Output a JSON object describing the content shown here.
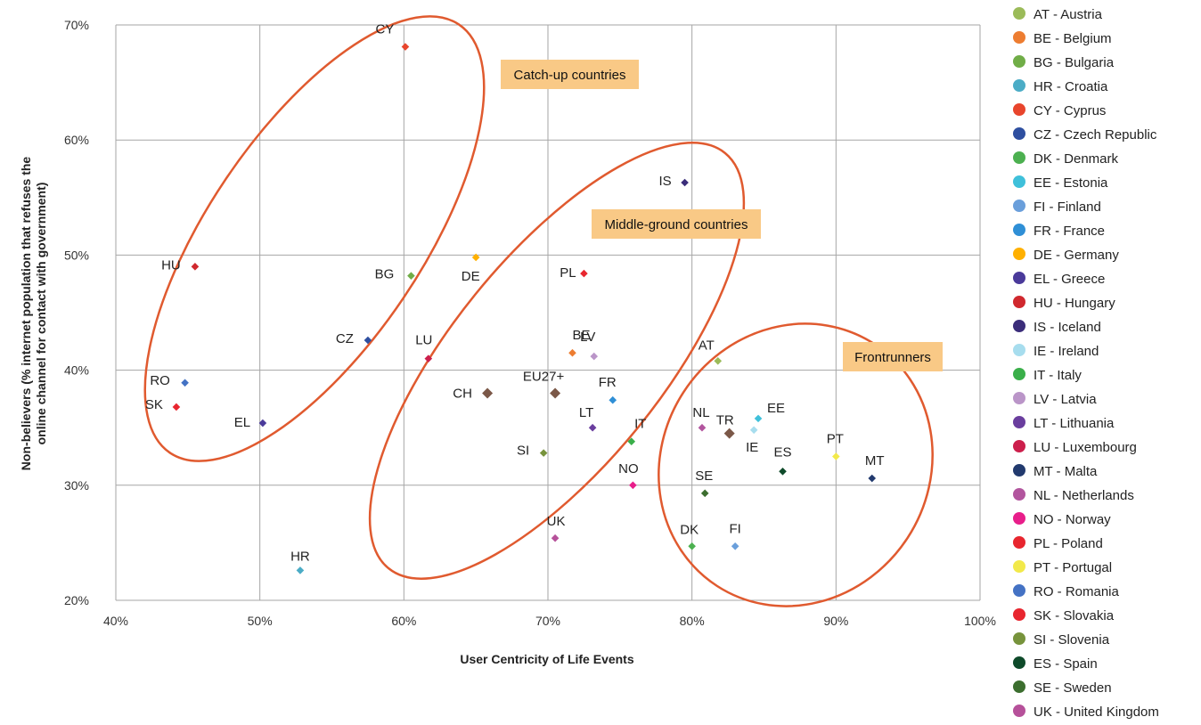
{
  "chart_data": {
    "type": "scatter",
    "title": "",
    "xlabel": "User Centricity of Life Events",
    "ylabel": [
      "Non-believers (% internet population that refuses the",
      "online channel for contact with government)"
    ],
    "xlim": [
      0.4,
      1.0
    ],
    "ylim": [
      0.2,
      0.7
    ],
    "xticks": [
      0.4,
      0.5,
      0.6,
      0.7,
      0.8,
      0.9,
      1.0
    ],
    "xtick_labels": [
      "40%",
      "50%",
      "60%",
      "70%",
      "80%",
      "90%",
      "100%"
    ],
    "yticks": [
      0.2,
      0.3,
      0.4,
      0.5,
      0.6,
      0.7
    ],
    "ytick_labels": [
      "20%",
      "30%",
      "40%",
      "50%",
      "60%",
      "70%"
    ],
    "grid": true,
    "legend_position": "right",
    "points": [
      {
        "code": "AT",
        "name": "AT - Austria",
        "color": "#9BBB59",
        "x": 0.818,
        "y": 0.408
      },
      {
        "code": "BE",
        "name": "BE - Belgium",
        "color": "#ED7D31",
        "x": 0.717,
        "y": 0.415
      },
      {
        "code": "BG",
        "name": "BG - Bulgaria",
        "color": "#70AD47",
        "x": 0.605,
        "y": 0.482
      },
      {
        "code": "HR",
        "name": "HR - Croatia",
        "color": "#4BACC6",
        "x": 0.528,
        "y": 0.226
      },
      {
        "code": "CY",
        "name": "CY - Cyprus",
        "color": "#E8452C",
        "x": 0.601,
        "y": 0.681
      },
      {
        "code": "CZ",
        "name": "CZ - Czech Republic",
        "color": "#2E4FA0",
        "x": 0.575,
        "y": 0.426
      },
      {
        "code": "DK",
        "name": "DK - Denmark",
        "color": "#4CB050",
        "x": 0.8,
        "y": 0.247
      },
      {
        "code": "EE",
        "name": "EE - Estonia",
        "color": "#3FC0DA",
        "x": 0.846,
        "y": 0.358
      },
      {
        "code": "FI",
        "name": "FI - Finland",
        "color": "#6A9FDB",
        "x": 0.83,
        "y": 0.247
      },
      {
        "code": "FR",
        "name": "FR - France",
        "color": "#2F8FD6",
        "x": 0.745,
        "y": 0.374
      },
      {
        "code": "DE",
        "name": "DE - Germany",
        "color": "#FFB000",
        "x": 0.65,
        "y": 0.498
      },
      {
        "code": "EL",
        "name": "EL - Greece",
        "color": "#4A3A9A",
        "x": 0.502,
        "y": 0.354
      },
      {
        "code": "HU",
        "name": "HU - Hungary",
        "color": "#D0282E",
        "x": 0.455,
        "y": 0.49
      },
      {
        "code": "IS",
        "name": "IS - Iceland",
        "color": "#3B2D7A",
        "x": 0.795,
        "y": 0.563
      },
      {
        "code": "IE",
        "name": "IE - Ireland",
        "color": "#A7DDEE",
        "x": 0.843,
        "y": 0.348
      },
      {
        "code": "IT",
        "name": "IT - Italy",
        "color": "#3AAF4A",
        "x": 0.758,
        "y": 0.338
      },
      {
        "code": "LV",
        "name": "LV - Latvia",
        "color": "#BA95C8",
        "x": 0.732,
        "y": 0.412
      },
      {
        "code": "LT",
        "name": "LT - Lithuania",
        "color": "#6A3E9E",
        "x": 0.731,
        "y": 0.35
      },
      {
        "code": "LU",
        "name": "LU - Luxembourg",
        "color": "#CC1F4C",
        "x": 0.617,
        "y": 0.41
      },
      {
        "code": "MT",
        "name": "MT - Malta",
        "color": "#223A6E",
        "x": 0.925,
        "y": 0.306
      },
      {
        "code": "NL",
        "name": "NL - Netherlands",
        "color": "#B2559E",
        "x": 0.807,
        "y": 0.35
      },
      {
        "code": "NO",
        "name": "NO - Norway",
        "color": "#E81E8A",
        "x": 0.759,
        "y": 0.3
      },
      {
        "code": "PL",
        "name": "PL - Poland",
        "color": "#E8262F",
        "x": 0.725,
        "y": 0.484
      },
      {
        "code": "PT",
        "name": "PT - Portugal",
        "color": "#F2E94A",
        "x": 0.9,
        "y": 0.325
      },
      {
        "code": "RO",
        "name": "RO - Romania",
        "color": "#4472C4",
        "x": 0.448,
        "y": 0.389
      },
      {
        "code": "SK",
        "name": "SK - Slovakia",
        "color": "#E8262F",
        "x": 0.442,
        "y": 0.368
      },
      {
        "code": "SI",
        "name": "SI - Slovenia",
        "color": "#77933C",
        "x": 0.697,
        "y": 0.328
      },
      {
        "code": "ES",
        "name": "ES - Spain",
        "color": "#0E4A2A",
        "x": 0.863,
        "y": 0.312
      },
      {
        "code": "SE",
        "name": "SE - Sweden",
        "color": "#3C6E2F",
        "x": 0.809,
        "y": 0.293
      },
      {
        "code": "UK",
        "name": "UK - United Kingdom",
        "color": "#B6519A",
        "x": 0.705,
        "y": 0.254
      },
      {
        "code": "CH",
        "name": "",
        "color": "#7B5848",
        "x": 0.658,
        "y": 0.38
      },
      {
        "code": "EU27+",
        "name": "",
        "color": "#7B5848",
        "x": 0.705,
        "y": 0.38
      },
      {
        "code": "TR",
        "name": "",
        "color": "#7B5848",
        "x": 0.826,
        "y": 0.345
      }
    ],
    "groups": [
      {
        "label": "Catch-up countries",
        "color": "#E05A2F",
        "highlight": "#F9C986"
      },
      {
        "label": "Middle-ground countries",
        "color": "#E05A2F",
        "highlight": "#F9C986"
      },
      {
        "label": "Frontrunners",
        "color": "#E05A2F",
        "highlight": "#F9C986"
      }
    ]
  }
}
